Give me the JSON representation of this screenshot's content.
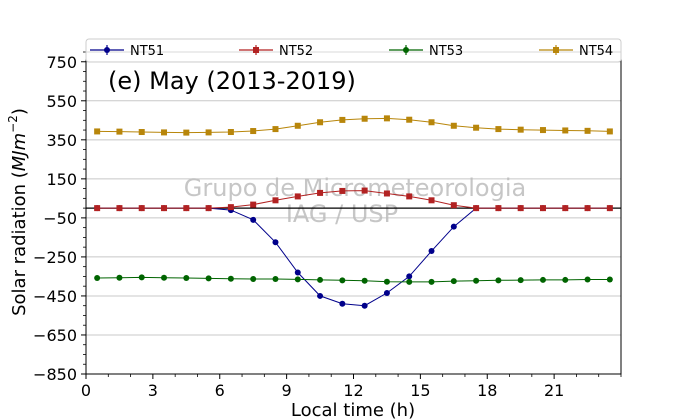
{
  "chart_data": {
    "type": "line",
    "title": "(e) May (2013-2019)",
    "xlabel": "Local time (h)",
    "ylabel": "Solar radiation (MJm^-2)",
    "xlim": [
      0,
      24
    ],
    "ylim": [
      -850,
      800
    ],
    "xticks": [
      0,
      3,
      6,
      9,
      12,
      15,
      18,
      21
    ],
    "yticks": [
      -850,
      -650,
      -450,
      -250,
      -50,
      150,
      350,
      550,
      750
    ],
    "grid": "horizontal",
    "legend_position": "top",
    "watermark": [
      "Grupo de Micrometeorologia",
      "IAG / USP"
    ],
    "x": [
      0.5,
      1.5,
      2.5,
      3.5,
      4.5,
      5.5,
      6.5,
      7.5,
      8.5,
      9.5,
      10.5,
      11.5,
      12.5,
      13.5,
      14.5,
      15.5,
      16.5,
      17.5,
      18.5,
      19.5,
      20.5,
      21.5,
      22.5,
      23.5
    ],
    "series": [
      {
        "name": "NT51",
        "color": "#00008b",
        "marker": "circle",
        "values": [
          0,
          0,
          0,
          0,
          0,
          0,
          -10,
          -60,
          -175,
          -330,
          -450,
          -490,
          -500,
          -435,
          -350,
          -220,
          -95,
          0,
          0,
          0,
          0,
          0,
          0,
          0
        ]
      },
      {
        "name": "NT52",
        "color": "#b22222",
        "marker": "square",
        "values": [
          0,
          0,
          0,
          0,
          0,
          0,
          5,
          18,
          40,
          60,
          78,
          88,
          90,
          75,
          60,
          40,
          15,
          0,
          0,
          0,
          0,
          0,
          0,
          0
        ]
      },
      {
        "name": "NT53",
        "color": "#006400",
        "marker": "circle",
        "values": [
          -358,
          -357,
          -355,
          -357,
          -358,
          -360,
          -362,
          -363,
          -363,
          -365,
          -368,
          -370,
          -372,
          -377,
          -378,
          -378,
          -374,
          -372,
          -370,
          -369,
          -368,
          -368,
          -366,
          -366
        ]
      },
      {
        "name": "NT54",
        "color": "#b8860b",
        "marker": "square",
        "values": [
          393,
          392,
          390,
          388,
          387,
          388,
          390,
          395,
          405,
          422,
          440,
          452,
          458,
          460,
          453,
          440,
          422,
          412,
          405,
          402,
          400,
          398,
          396,
          393
        ]
      }
    ]
  }
}
